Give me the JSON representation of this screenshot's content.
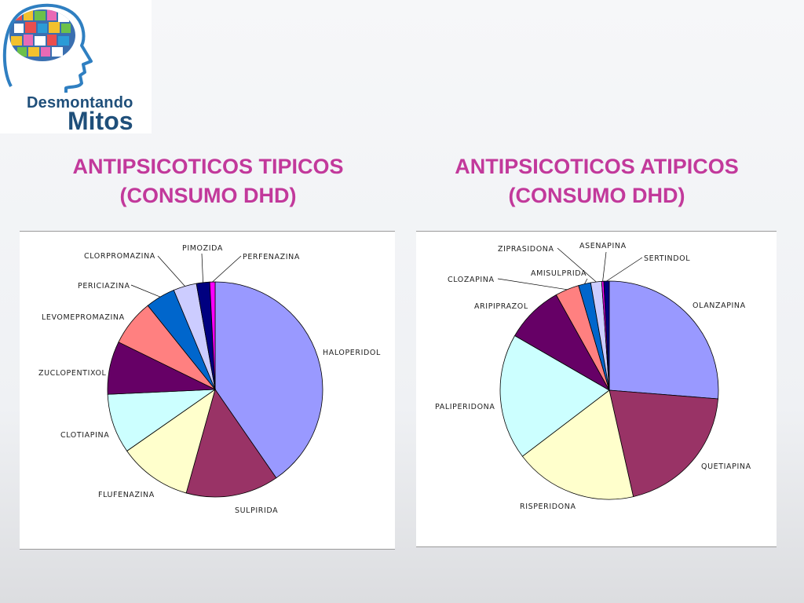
{
  "logo": {
    "line1": "Desmontando",
    "line2": "Mitos"
  },
  "colors": {
    "title": "#c2399b",
    "logo_text": "#1f4f7a"
  },
  "chart_data": [
    {
      "type": "pie",
      "title_line1": "ANTIPSICOTICOS TIPICOS",
      "title_line2": "(CONSUMO DHD)",
      "slices": [
        {
          "label": "HALOPERIDOL",
          "value": 40.5,
          "color": "#9999ff"
        },
        {
          "label": "SULPIRIDA",
          "value": 14.0,
          "color": "#993366"
        },
        {
          "label": "FLUFENAZINA",
          "value": 11.0,
          "color": "#ffffcc"
        },
        {
          "label": "CLOTIAPINA",
          "value": 9.0,
          "color": "#ccffff"
        },
        {
          "label": "ZUCLOPENTIXOL",
          "value": 8.0,
          "color": "#660066"
        },
        {
          "label": "LEVOMEPROMAZINA",
          "value": 7.0,
          "color": "#ff8080"
        },
        {
          "label": "PERICIAZINA",
          "value": 4.5,
          "color": "#0066cc"
        },
        {
          "label": "CLORPROMAZINA",
          "value": 3.5,
          "color": "#ccccff"
        },
        {
          "label": "PIMOZIDA",
          "value": 2.0,
          "color": "#000080"
        },
        {
          "label": "PERFENAZINA",
          "value": 0.8,
          "color": "#ff00ff"
        }
      ]
    },
    {
      "type": "pie",
      "title_line1": "ANTIPSICOTICOS ATIPICOS",
      "title_line2": "(CONSUMO DHD)",
      "slices": [
        {
          "label": "OLANZAPINA",
          "value": 26.0,
          "color": "#9999ff"
        },
        {
          "label": "QUETIAPINA",
          "value": 20.0,
          "color": "#993366"
        },
        {
          "label": "RISPERIDONA",
          "value": 18.0,
          "color": "#ffffcc"
        },
        {
          "label": "PALIPERIDONA",
          "value": 18.5,
          "color": "#ccffff"
        },
        {
          "label": "ARIPIPRAZOL",
          "value": 8.5,
          "color": "#660066"
        },
        {
          "label": "CLOZAPINA",
          "value": 3.5,
          "color": "#ff8080"
        },
        {
          "label": "AMISULPRIDA",
          "value": 1.8,
          "color": "#0066cc"
        },
        {
          "label": "ZIPRASIDONA",
          "value": 1.6,
          "color": "#ccccff"
        },
        {
          "label": "ASENAPINA",
          "value": 0.3,
          "color": "#ff00ff"
        },
        {
          "label": "SERTINDOL",
          "value": 0.8,
          "color": "#000080"
        }
      ]
    }
  ]
}
